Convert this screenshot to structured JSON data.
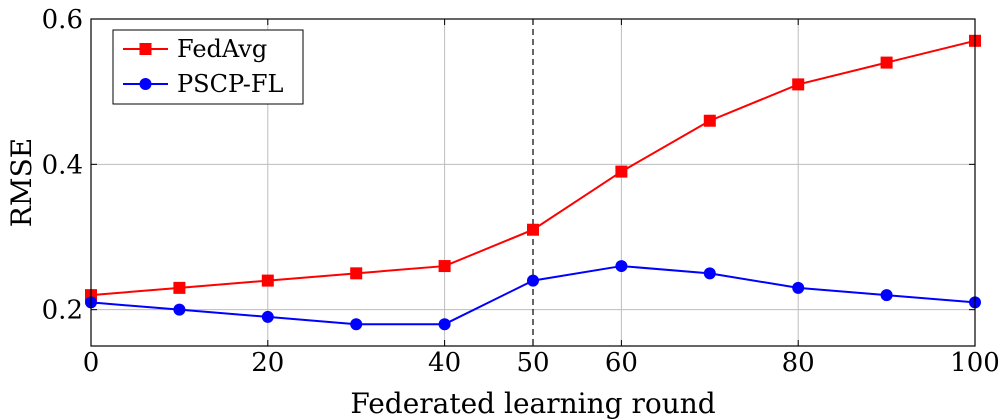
{
  "chart_data": {
    "type": "line",
    "title": "",
    "xlabel": "Federated learning round",
    "ylabel": "RMSE",
    "xlim": [
      0,
      100
    ],
    "ylim": [
      0.15,
      0.6
    ],
    "xticks": [
      0,
      20,
      40,
      50,
      60,
      80,
      100
    ],
    "xtick_labels": [
      "0",
      "20",
      "40",
      "50",
      "60",
      "80",
      "100"
    ],
    "yticks": [
      0.2,
      0.4,
      0.6
    ],
    "ytick_labels": [
      "0.2",
      "0.4",
      "0.6"
    ],
    "grid": true,
    "legend_position": "top-left",
    "vertical_line": {
      "x": 50,
      "style": "dashed"
    },
    "x": [
      0,
      10,
      20,
      30,
      40,
      50,
      60,
      70,
      80,
      90,
      100
    ],
    "series": [
      {
        "name": "FedAvg",
        "color": "#ff0000",
        "marker": "square",
        "values": [
          0.22,
          0.23,
          0.24,
          0.25,
          0.26,
          0.31,
          0.39,
          0.46,
          0.51,
          0.54,
          0.57
        ]
      },
      {
        "name": "PSCP-FL",
        "color": "#0000ff",
        "marker": "circle",
        "values": [
          0.21,
          0.2,
          0.19,
          0.18,
          0.18,
          0.24,
          0.26,
          0.25,
          0.23,
          0.22,
          0.21
        ]
      }
    ]
  }
}
